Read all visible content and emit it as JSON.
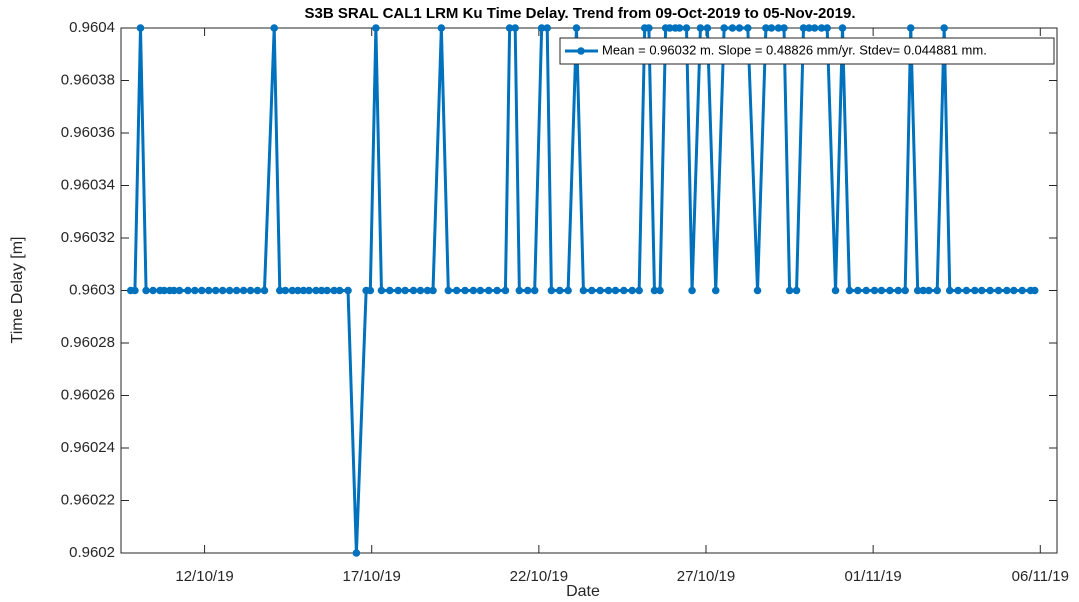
{
  "chart_data": {
    "type": "line",
    "title": "S3B SRAL CAL1 LRM Ku Time Delay. Trend from 09-Oct-2019 to 05-Nov-2019.",
    "x_label": "Date",
    "y_label": "Time Delay [m]",
    "x": [
      "2019-10-09 19:00",
      "2019-10-09 22:00",
      "2019-10-10 02:00",
      "2019-10-10 06:00",
      "2019-10-10 11:00",
      "2019-10-10 16:00",
      "2019-10-10 19:00",
      "2019-10-10 23:00",
      "2019-10-11 02:00",
      "2019-10-11 06:00",
      "2019-10-11 12:00",
      "2019-10-11 17:00",
      "2019-10-11 22:00",
      "2019-10-12 03:00",
      "2019-10-12 08:00",
      "2019-10-12 13:00",
      "2019-10-12 18:00",
      "2019-10-12 23:00",
      "2019-10-13 04:00",
      "2019-10-13 09:00",
      "2019-10-13 14:00",
      "2019-10-13 19:00",
      "2019-10-14 02:00",
      "2019-10-14 06:00",
      "2019-10-14 10:00",
      "2019-10-14 15:00",
      "2019-10-14 19:00",
      "2019-10-14 23:00",
      "2019-10-15 03:00",
      "2019-10-15 08:00",
      "2019-10-15 12:00",
      "2019-10-15 16:00",
      "2019-10-15 21:00",
      "2019-10-16 01:00",
      "2019-10-16 07:00",
      "2019-10-16 13:00",
      "2019-10-16 20:00",
      "2019-10-16 23:00",
      "2019-10-17 03:00",
      "2019-10-17 07:00",
      "2019-10-17 13:00",
      "2019-10-17 19:00",
      "2019-10-18 00:00",
      "2019-10-18 06:00",
      "2019-10-18 11:00",
      "2019-10-18 16:00",
      "2019-10-18 20:00",
      "2019-10-19 02:00",
      "2019-10-19 07:00",
      "2019-10-19 13:00",
      "2019-10-19 19:00",
      "2019-10-20 01:00",
      "2019-10-20 06:00",
      "2019-10-20 12:00",
      "2019-10-20 18:00",
      "2019-10-21 00:00",
      "2019-10-21 03:00",
      "2019-10-21 07:00",
      "2019-10-21 10:00",
      "2019-10-21 16:00",
      "2019-10-21 21:00",
      "2019-10-22 02:00",
      "2019-10-22 06:00",
      "2019-10-22 09:00",
      "2019-10-22 15:00",
      "2019-10-22 21:00",
      "2019-10-23 03:00",
      "2019-10-23 08:00",
      "2019-10-23 14:00",
      "2019-10-23 20:00",
      "2019-10-24 02:00",
      "2019-10-24 07:00",
      "2019-10-24 13:00",
      "2019-10-24 19:00",
      "2019-10-25 00:00",
      "2019-10-25 04:00",
      "2019-10-25 07:00",
      "2019-10-25 11:00",
      "2019-10-25 15:00",
      "2019-10-25 19:00",
      "2019-10-25 22:00",
      "2019-10-26 02:00",
      "2019-10-26 05:00",
      "2019-10-26 10:00",
      "2019-10-26 14:00",
      "2019-10-26 20:00",
      "2019-10-27 01:00",
      "2019-10-27 07:00",
      "2019-10-27 13:00",
      "2019-10-27 19:00",
      "2019-10-28 00:00",
      "2019-10-28 06:00",
      "2019-10-28 13:00",
      "2019-10-28 19:00",
      "2019-10-28 23:00",
      "2019-10-29 04:00",
      "2019-10-29 08:00",
      "2019-10-29 12:00",
      "2019-10-29 17:00",
      "2019-10-29 22:00",
      "2019-10-30 02:00",
      "2019-10-30 06:00",
      "2019-10-30 11:00",
      "2019-10-30 15:00",
      "2019-10-30 21:00",
      "2019-10-31 02:00",
      "2019-10-31 07:00",
      "2019-10-31 13:00",
      "2019-10-31 19:00",
      "2019-11-01 01:00",
      "2019-11-01 06:00",
      "2019-11-01 12:00",
      "2019-11-01 18:00",
      "2019-11-01 23:00",
      "2019-11-02 03:00",
      "2019-11-02 08:00",
      "2019-11-02 12:00",
      "2019-11-02 16:00",
      "2019-11-02 22:00",
      "2019-11-03 03:00",
      "2019-11-03 07:00",
      "2019-11-03 13:00",
      "2019-11-03 19:00",
      "2019-11-04 01:00",
      "2019-11-04 06:00",
      "2019-11-04 12:00",
      "2019-11-04 18:00",
      "2019-11-05 00:00",
      "2019-11-05 05:00",
      "2019-11-05 11:00",
      "2019-11-05 17:00",
      "2019-11-05 20:00"
    ],
    "series": [
      {
        "name": "Mean = 0.96032 m. Slope = 0.48826 mm/yr. Stdev= 0.044881 mm.",
        "color": "#0072bd",
        "values": [
          0.9603,
          0.9603,
          0.9604,
          0.9603,
          0.9603,
          0.9603,
          0.9603,
          0.9603,
          0.9603,
          0.9603,
          0.9603,
          0.9603,
          0.9603,
          0.9603,
          0.9603,
          0.9603,
          0.9603,
          0.9603,
          0.9603,
          0.9603,
          0.9603,
          0.9603,
          0.9604,
          0.9603,
          0.9603,
          0.9603,
          0.9603,
          0.9603,
          0.9603,
          0.9603,
          0.9603,
          0.9603,
          0.9603,
          0.9603,
          0.9603,
          0.9602,
          0.9603,
          0.9603,
          0.9604,
          0.9603,
          0.9603,
          0.9603,
          0.9603,
          0.9603,
          0.9603,
          0.9603,
          0.9603,
          0.9604,
          0.9603,
          0.9603,
          0.9603,
          0.9603,
          0.9603,
          0.9603,
          0.9603,
          0.9603,
          0.9604,
          0.9604,
          0.9603,
          0.9603,
          0.9603,
          0.9604,
          0.9604,
          0.9603,
          0.9603,
          0.9603,
          0.9604,
          0.9603,
          0.9603,
          0.9603,
          0.9603,
          0.9603,
          0.9603,
          0.9603,
          0.9603,
          0.9604,
          0.9604,
          0.9603,
          0.9603,
          0.9604,
          0.9604,
          0.9604,
          0.9604,
          0.9604,
          0.9603,
          0.9604,
          0.9604,
          0.9603,
          0.9604,
          0.9604,
          0.9604,
          0.9604,
          0.9603,
          0.9604,
          0.9604,
          0.9604,
          0.9604,
          0.9603,
          0.9603,
          0.9604,
          0.9604,
          0.9604,
          0.9604,
          0.9604,
          0.9603,
          0.9604,
          0.9603,
          0.9603,
          0.9603,
          0.9603,
          0.9603,
          0.9603,
          0.9603,
          0.9603,
          0.9604,
          0.9603,
          0.9603,
          0.9603,
          0.9603,
          0.9604,
          0.9603,
          0.9603,
          0.9603,
          0.9603,
          0.9603,
          0.9603,
          0.9603,
          0.9603,
          0.9603,
          0.9603,
          0.9603,
          0.9603
        ]
      }
    ],
    "xlim": [
      "2019-10-09 12:00",
      "2019-11-06 12:00"
    ],
    "xticks": [
      {
        "value": "2019-10-12 00:00",
        "label": "12/10/19"
      },
      {
        "value": "2019-10-17 00:00",
        "label": "17/10/19"
      },
      {
        "value": "2019-10-22 00:00",
        "label": "22/10/19"
      },
      {
        "value": "2019-10-27 00:00",
        "label": "27/10/19"
      },
      {
        "value": "2019-11-01 00:00",
        "label": "01/11/19"
      },
      {
        "value": "2019-11-06 00:00",
        "label": "06/11/19"
      }
    ],
    "ylim": [
      0.9602,
      0.9604
    ],
    "yticks": [
      0.9602,
      0.96022,
      0.96024,
      0.96026,
      0.96028,
      0.9603,
      0.96032,
      0.96034,
      0.96036,
      0.96038,
      0.9604
    ],
    "grid": false,
    "legend": "northeast"
  }
}
